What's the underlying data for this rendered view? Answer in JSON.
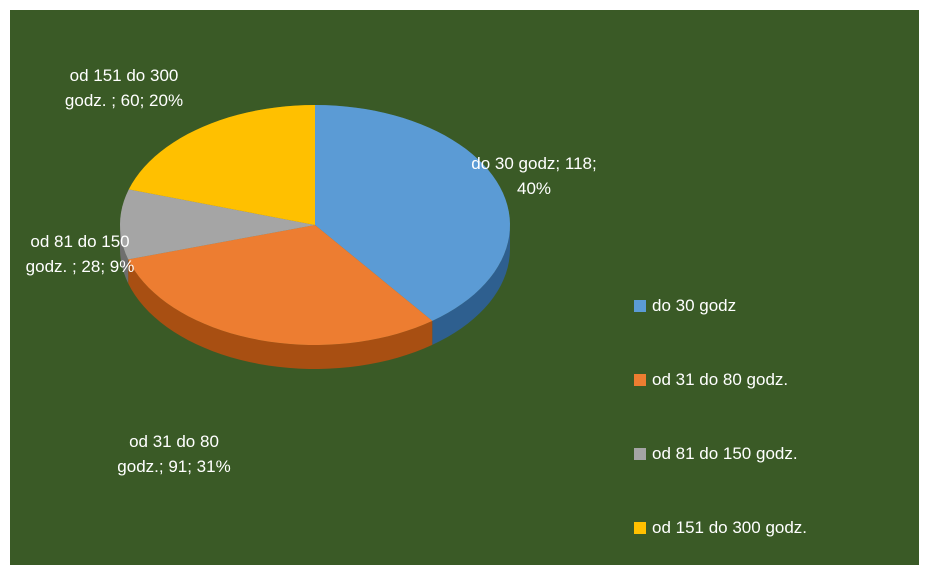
{
  "chart_data": {
    "type": "pie",
    "categories": [
      "do 30 godz",
      "od 31 do 80 godz.",
      "od 81 do 150 godz.",
      "od 151 do 300 godz."
    ],
    "values": [
      118,
      91,
      28,
      60
    ],
    "percentages": [
      40,
      31,
      9,
      20
    ],
    "data_labels": [
      [
        "do 30 godz; 118;",
        "40%"
      ],
      [
        "od 31 do 80",
        "godz.; 91; 31%"
      ],
      [
        "od 81 do 150",
        "godz. ; 28; 9%"
      ],
      [
        "od 151 do 300",
        "godz. ; 60; 20%"
      ]
    ],
    "colors": [
      "#5b9bd5",
      "#ed7d31",
      "#a5a5a5",
      "#ffc000"
    ],
    "side_colors": [
      "#2e5f8f",
      "#a84f12",
      "#6e6e6e",
      "#b88a00"
    ],
    "background": "#3a5a26",
    "legend": {
      "position": "right"
    },
    "style": "3d"
  }
}
